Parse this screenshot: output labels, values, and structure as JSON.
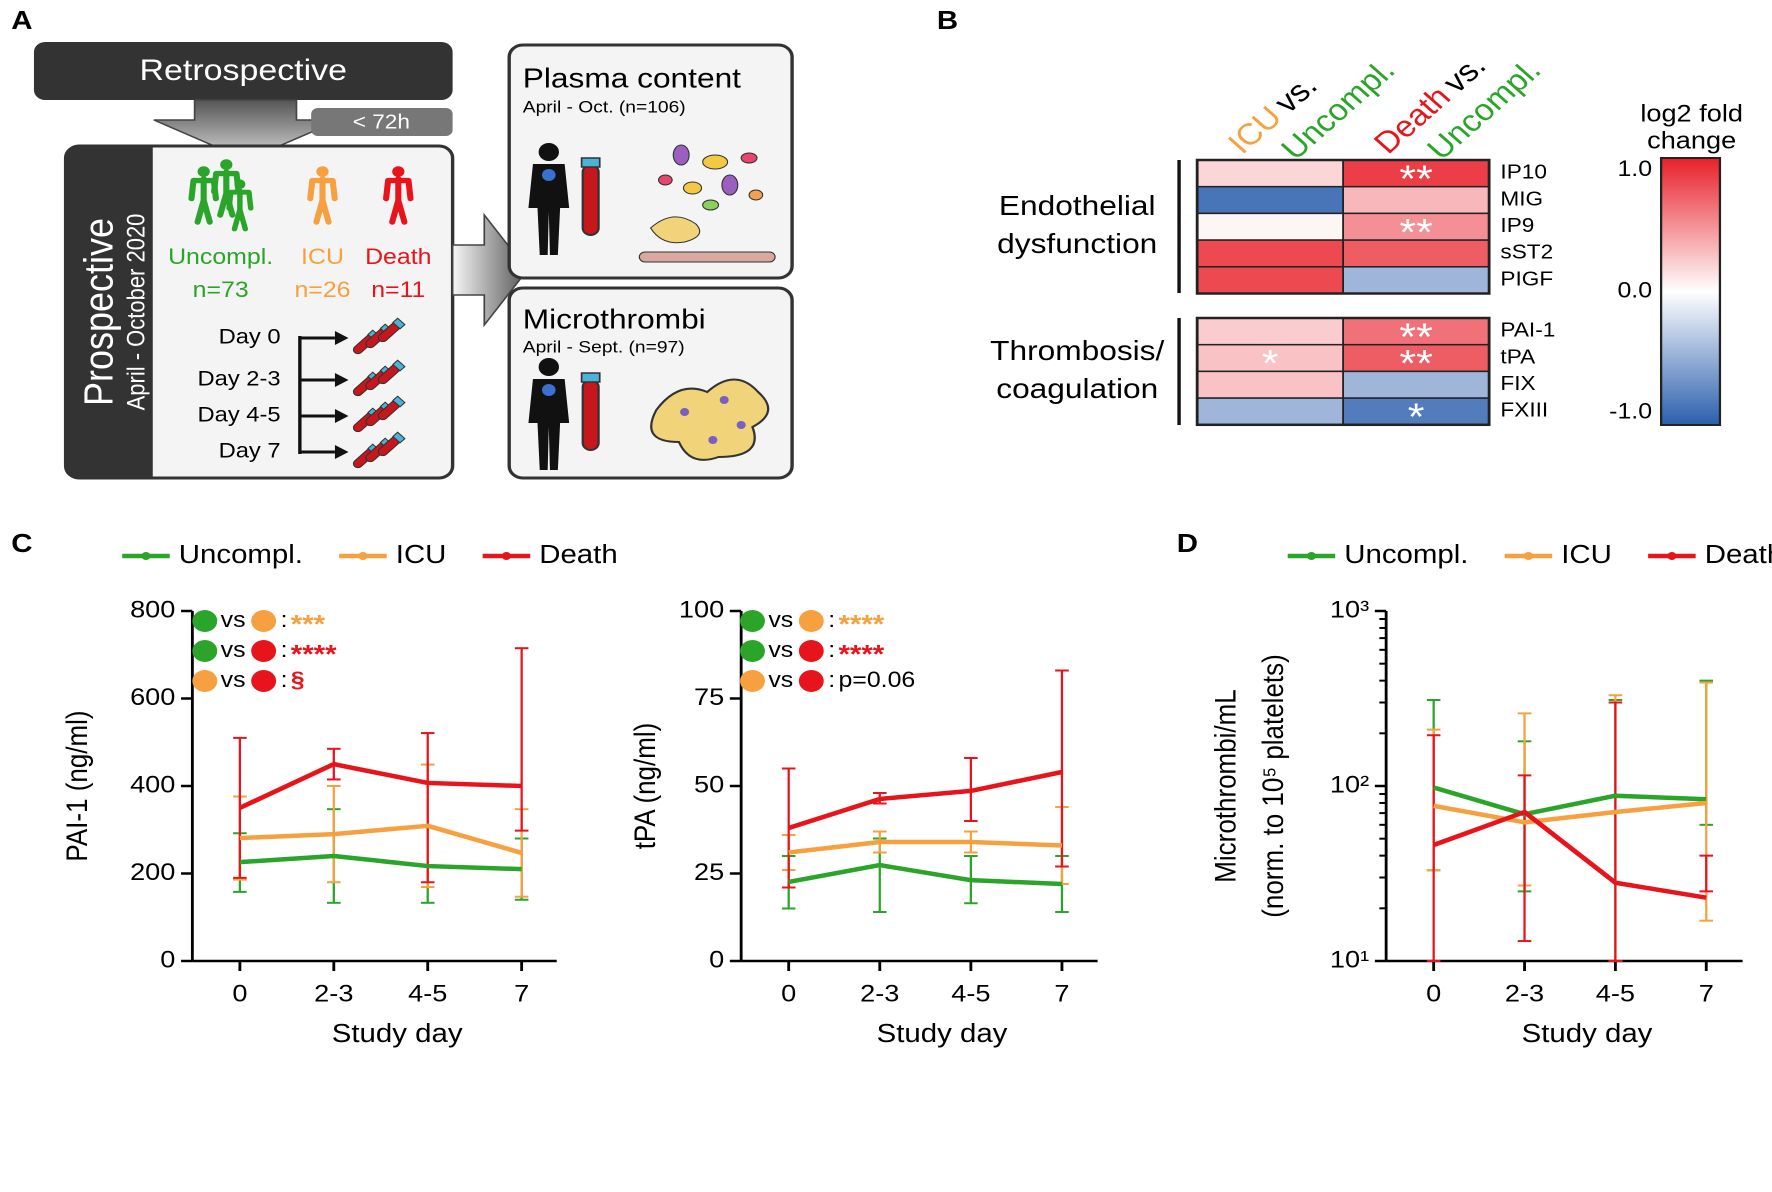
{
  "panel_labels": [
    "A",
    "B",
    "C",
    "D"
  ],
  "diagram": {
    "retrospective": "Retrospective",
    "delay": "< 72h",
    "prospective": {
      "title": "Prospective",
      "period": "April - October 2020"
    },
    "groups": [
      {
        "name": "Uncompl.",
        "n": "n=73",
        "color": "#2aa52a"
      },
      {
        "name": "ICU",
        "n": "n=26",
        "color": "#f7a040"
      },
      {
        "name": "Death",
        "n": "n=11",
        "color": "#e8141c"
      }
    ],
    "days": [
      "Day 0",
      "Day 2-3",
      "Day 4-5",
      "Day 7"
    ],
    "outputs": [
      {
        "title": "Plasma content",
        "period": "April - Oct. (n=106)"
      },
      {
        "title": "Microthrombi",
        "period": "April - Sept. (n=97)"
      }
    ]
  },
  "chart_data": [
    {
      "type": "heatmap",
      "columns": [
        [
          [
            {
              "text": "ICU",
              "color": "#f7a040"
            },
            {
              "text": "vs.",
              "color": "#000000"
            }
          ],
          [
            {
              "text": "Uncompl.",
              "color": "#2aa52a"
            }
          ]
        ],
        [
          [
            {
              "text": "Death",
              "color": "#e8141c"
            },
            {
              "text": "vs.",
              "color": "#000000"
            }
          ],
          [
            {
              "text": "Uncompl.",
              "color": "#2aa52a"
            }
          ]
        ]
      ],
      "groups": [
        {
          "label": [
            "Endothelial",
            "dysfunction"
          ],
          "rows": [
            "IP10",
            "MIG",
            "IP9",
            "sST2",
            "PIGF"
          ],
          "values": [
            [
              0.2,
              0.95
            ],
            [
              -0.95,
              0.35
            ],
            [
              0.05,
              0.55
            ],
            [
              0.9,
              0.8
            ],
            [
              0.9,
              -0.5
            ]
          ],
          "stars": [
            [
              null,
              "**"
            ],
            [
              null,
              null
            ],
            [
              null,
              "**"
            ],
            [
              null,
              null
            ],
            [
              null,
              null
            ]
          ]
        },
        {
          "label": [
            "Thrombosis/",
            "coagulation"
          ],
          "rows": [
            "PAI-1",
            "tPA",
            "FIX",
            "FXIII"
          ],
          "values": [
            [
              0.25,
              0.7
            ],
            [
              0.3,
              0.8
            ],
            [
              0.3,
              -0.5
            ],
            [
              -0.5,
              -0.9
            ]
          ],
          "stars": [
            [
              null,
              "**"
            ],
            [
              "*",
              "**"
            ],
            [
              null,
              null
            ],
            [
              null,
              "*"
            ]
          ]
        }
      ],
      "colorbar": {
        "title": [
          "log2 fold",
          "change"
        ],
        "zlim": [
          -1.1,
          1.1
        ],
        "colors": [
          "#2b5fad",
          "#ffffff",
          "#e8202a"
        ],
        "ticks": [
          {
            "value": 1,
            "label": "1.0"
          },
          {
            "value": 0,
            "label": "0.0"
          },
          {
            "value": -1,
            "label": "-1.0"
          }
        ]
      }
    },
    {
      "type": "line",
      "categories": [
        "0",
        "2-3",
        "4-5",
        "7"
      ],
      "xlabel": "Study day",
      "ylabel": [
        "PAI-1 (ng/ml)"
      ],
      "ylim": [
        0,
        800
      ],
      "yticks": [
        0,
        200,
        400,
        600,
        800
      ],
      "series": [
        {
          "name": "Uncompl.",
          "color": "#2aa52a",
          "values": [
            226,
            240,
            217,
            210
          ],
          "lower": [
            158,
            133,
            133,
            140
          ],
          "upper": [
            292,
            347,
            307,
            280
          ]
        },
        {
          "name": "ICU",
          "color": "#f7a040",
          "values": [
            281,
            290,
            309,
            247
          ],
          "lower": [
            186,
            180,
            169,
            147
          ],
          "upper": [
            376,
            400,
            449,
            347
          ]
        },
        {
          "name": "Death",
          "color": "#e8141c",
          "values": [
            350,
            450,
            407,
            400
          ],
          "lower": [
            190,
            415,
            180,
            298
          ],
          "upper": [
            510,
            485,
            521,
            715
          ]
        }
      ],
      "significance": [
        {
          "colors": [
            "#2aa52a",
            "#f7a040"
          ],
          "vs": "vs",
          "sep": ":",
          "result": "***",
          "result_color": "#f7a040"
        },
        {
          "colors": [
            "#2aa52a",
            "#e8141c"
          ],
          "vs": "vs",
          "sep": ":",
          "result": "****",
          "result_color": "#e8141c"
        },
        {
          "colors": [
            "#f7a040",
            "#e8141c"
          ],
          "vs": "vs",
          "sep": ":",
          "result": "§",
          "result_color": "#e8141c"
        }
      ]
    },
    {
      "type": "line",
      "categories": [
        "0",
        "2-3",
        "4-5",
        "7"
      ],
      "xlabel": "Study day",
      "ylabel": [
        "tPA (ng/ml)"
      ],
      "ylim": [
        0,
        100
      ],
      "yticks": [
        0,
        25,
        50,
        75,
        100
      ],
      "series": [
        {
          "color": "#2aa52a",
          "values": [
            22.6,
            27.4,
            23.1,
            22
          ],
          "lower": [
            15,
            14,
            16.5,
            14
          ],
          "upper": [
            30,
            35,
            30,
            30
          ]
        },
        {
          "color": "#f7a040",
          "values": [
            31,
            34,
            34,
            33
          ],
          "lower": [
            26,
            31,
            31,
            22
          ],
          "upper": [
            36,
            37,
            37,
            44
          ]
        },
        {
          "color": "#e8141c",
          "values": [
            38,
            46.3,
            48.6,
            54
          ],
          "lower": [
            21,
            45,
            40,
            27
          ],
          "upper": [
            55,
            48,
            58,
            83
          ]
        }
      ],
      "significance": [
        {
          "colors": [
            "#2aa52a",
            "#f7a040"
          ],
          "vs": "vs",
          "sep": ":",
          "result": "****",
          "result_color": "#f7a040"
        },
        {
          "colors": [
            "#2aa52a",
            "#e8141c"
          ],
          "vs": "vs",
          "sep": ":",
          "result": "****",
          "result_color": "#e8141c"
        },
        {
          "colors": [
            "#f7a040",
            "#e8141c"
          ],
          "vs": "vs",
          "sep": ":",
          "result": "p=0.06",
          "result_color": "#000000"
        }
      ]
    },
    {
      "type": "line",
      "categories": [
        "0",
        "2-3",
        "4-5",
        "7"
      ],
      "xlabel": "Study day",
      "ylabel": [
        "Microthrombi/mL",
        "(norm. to 10⁵ platelets)"
      ],
      "yscale": "log",
      "ylim": [
        10,
        1000
      ],
      "yticks": [
        {
          "value": 10,
          "label": "10¹"
        },
        {
          "value": 100,
          "label": "10²"
        },
        {
          "value": 1000,
          "label": "10³"
        }
      ],
      "minor_yticks": [
        20,
        30,
        40,
        50,
        60,
        70,
        80,
        90,
        200,
        300,
        400,
        500,
        600,
        700,
        800,
        900
      ],
      "series": [
        {
          "name": "Uncompl.",
          "color": "#2aa52a",
          "values": [
            98,
            69,
            88,
            84
          ],
          "lower": [
            33,
            25,
            10,
            60
          ],
          "upper": [
            310,
            180,
            310,
            400
          ]
        },
        {
          "name": "ICU",
          "color": "#f7a040",
          "values": [
            77,
            62,
            71,
            80
          ],
          "lower": [
            33,
            27,
            10,
            17
          ],
          "upper": [
            210,
            260,
            330,
            390
          ]
        },
        {
          "name": "Death",
          "color": "#e8141c",
          "values": [
            46,
            71,
            28,
            23
          ],
          "lower": [
            10,
            13,
            10,
            25
          ],
          "upper": [
            195,
            115,
            300,
            40
          ]
        }
      ]
    }
  ]
}
